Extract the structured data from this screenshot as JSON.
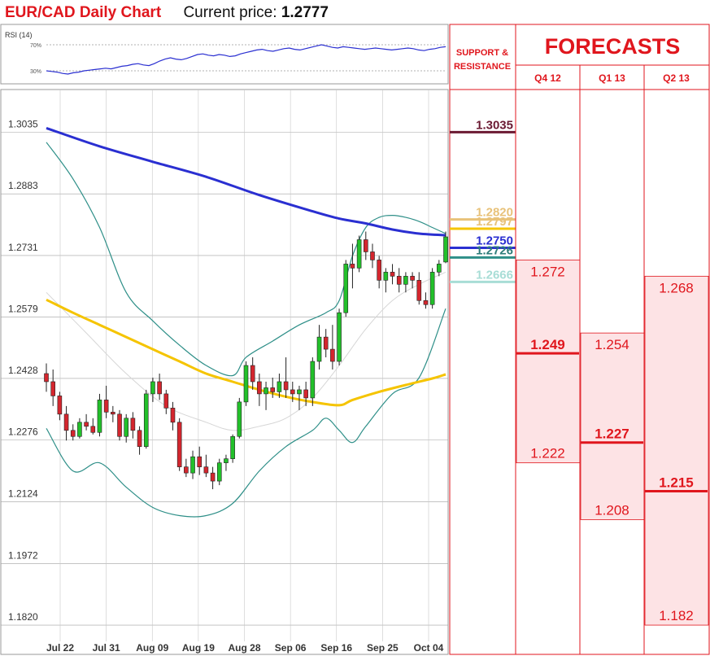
{
  "header": {
    "title": "EUR/CAD Daily Chart",
    "price_label": "Current price:",
    "price_value": "1.2777"
  },
  "colors": {
    "accent_red": "#e0161d",
    "bull_candle": "#22c02a",
    "bear_candle": "#d4262e",
    "sma_short": "#f5c400",
    "sma_long": "#2a2fd1",
    "bollinger": "#2e8f88",
    "forecast_fill": "#fde3e5"
  },
  "rsi": {
    "label": "RSI (14)",
    "levels": [
      "70%",
      "30%"
    ],
    "level_values": [
      70,
      30
    ],
    "values": [
      30,
      29,
      28,
      26,
      25,
      27,
      28,
      30,
      31,
      32,
      33,
      34,
      33,
      35,
      37,
      38,
      40,
      41,
      39,
      38,
      41,
      45,
      48,
      50,
      48,
      47,
      49,
      52,
      55,
      56,
      54,
      53,
      55,
      54,
      52,
      53,
      56,
      58,
      60,
      62,
      63,
      61,
      60,
      62,
      64,
      65,
      63,
      62,
      64,
      66,
      68,
      70,
      68,
      66,
      65,
      67,
      66,
      65,
      64,
      63,
      64,
      65,
      64,
      63,
      62,
      63,
      64,
      65,
      64,
      62,
      61,
      63,
      64,
      66,
      67
    ]
  },
  "chart_data": {
    "type": "candlestick",
    "title": "EUR/CAD Daily Chart",
    "ylim": [
      1.178,
      1.311
    ],
    "y_ticks": [
      "1.3035",
      "1.2883",
      "1.2731",
      "1.2579",
      "1.2428",
      "1.2276",
      "1.2124",
      "1.1972",
      "1.1820"
    ],
    "x_ticks": [
      "Jul 22",
      "Jul 31",
      "Aug 09",
      "Aug 19",
      "Aug 28",
      "Sep 06",
      "Sep 16",
      "Sep 25",
      "Oct 04"
    ],
    "candles": [
      [
        1.244,
        1.2465,
        1.2395,
        1.242
      ],
      [
        1.242,
        1.245,
        1.236,
        1.2385
      ],
      [
        1.2385,
        1.2395,
        1.2325,
        1.234
      ],
      [
        1.234,
        1.236,
        1.2275,
        1.23
      ],
      [
        1.23,
        1.2315,
        1.2275,
        1.2285
      ],
      [
        1.2285,
        1.233,
        1.228,
        1.232
      ],
      [
        1.232,
        1.234,
        1.23,
        1.231
      ],
      [
        1.231,
        1.233,
        1.229,
        1.2295
      ],
      [
        1.2295,
        1.239,
        1.2285,
        1.2375
      ],
      [
        1.2375,
        1.241,
        1.233,
        1.2345
      ],
      [
        1.2345,
        1.236,
        1.232,
        1.234
      ],
      [
        1.234,
        1.235,
        1.2275,
        1.2285
      ],
      [
        1.2285,
        1.234,
        1.227,
        1.233
      ],
      [
        1.233,
        1.2345,
        1.228,
        1.23
      ],
      [
        1.23,
        1.231,
        1.224,
        1.226
      ],
      [
        1.226,
        1.24,
        1.2255,
        1.239
      ],
      [
        1.239,
        1.243,
        1.237,
        1.242
      ],
      [
        1.242,
        1.244,
        1.2375,
        1.239
      ],
      [
        1.239,
        1.24,
        1.234,
        1.2355
      ],
      [
        1.2355,
        1.237,
        1.23,
        1.232
      ],
      [
        1.232,
        1.233,
        1.22,
        1.221
      ],
      [
        1.221,
        1.223,
        1.2185,
        1.2195
      ],
      [
        1.2195,
        1.225,
        1.218,
        1.2235
      ],
      [
        1.2235,
        1.226,
        1.219,
        1.221
      ],
      [
        1.221,
        1.224,
        1.2185,
        1.2195
      ],
      [
        1.2195,
        1.221,
        1.2155,
        1.2175
      ],
      [
        1.2175,
        1.223,
        1.2165,
        1.222
      ],
      [
        1.222,
        1.224,
        1.22,
        1.223
      ],
      [
        1.223,
        1.229,
        1.222,
        1.2285
      ],
      [
        1.2285,
        1.238,
        1.228,
        1.237
      ],
      [
        1.237,
        1.247,
        1.236,
        1.246
      ],
      [
        1.246,
        1.248,
        1.24,
        1.242
      ],
      [
        1.242,
        1.244,
        1.236,
        1.239
      ],
      [
        1.239,
        1.242,
        1.235,
        1.2405
      ],
      [
        1.2405,
        1.243,
        1.238,
        1.2395
      ],
      [
        1.2395,
        1.244,
        1.238,
        1.242
      ],
      [
        1.242,
        1.248,
        1.238,
        1.24
      ],
      [
        1.24,
        1.242,
        1.237,
        1.239
      ],
      [
        1.239,
        1.241,
        1.235,
        1.24
      ],
      [
        1.24,
        1.242,
        1.236,
        1.238
      ],
      [
        1.238,
        1.248,
        1.236,
        1.247
      ],
      [
        1.247,
        1.256,
        1.245,
        1.253
      ],
      [
        1.253,
        1.255,
        1.248,
        1.25
      ],
      [
        1.25,
        1.256,
        1.245,
        1.247
      ],
      [
        1.247,
        1.26,
        1.246,
        1.259
      ],
      [
        1.259,
        1.272,
        1.258,
        1.271
      ],
      [
        1.271,
        1.276,
        1.265,
        1.27
      ],
      [
        1.27,
        1.278,
        1.269,
        1.277
      ],
      [
        1.277,
        1.279,
        1.272,
        1.274
      ],
      [
        1.274,
        1.276,
        1.27,
        1.272
      ],
      [
        1.272,
        1.273,
        1.265,
        1.267
      ],
      [
        1.267,
        1.27,
        1.264,
        1.269
      ],
      [
        1.269,
        1.271,
        1.266,
        1.268
      ],
      [
        1.268,
        1.27,
        1.264,
        1.266
      ],
      [
        1.266,
        1.269,
        1.264,
        1.268
      ],
      [
        1.268,
        1.269,
        1.265,
        1.267
      ],
      [
        1.267,
        1.269,
        1.261,
        1.262
      ],
      [
        1.262,
        1.264,
        1.26,
        1.261
      ],
      [
        1.261,
        1.27,
        1.26,
        1.269
      ],
      [
        1.269,
        1.272,
        1.268,
        1.271
      ],
      [
        1.2715,
        1.279,
        1.2712,
        1.2777
      ]
    ],
    "sma_short": [
      [
        0,
        1.2622
      ],
      [
        4,
        1.259
      ],
      [
        8,
        1.256
      ],
      [
        12,
        1.253
      ],
      [
        16,
        1.25
      ],
      [
        20,
        1.247
      ],
      [
        24,
        1.244
      ],
      [
        28,
        1.242
      ],
      [
        32,
        1.24
      ],
      [
        36,
        1.2383
      ],
      [
        40,
        1.237
      ],
      [
        44,
        1.2362
      ],
      [
        46,
        1.2375
      ],
      [
        50,
        1.2395
      ],
      [
        54,
        1.2412
      ],
      [
        58,
        1.2428
      ],
      [
        60,
        1.2438
      ]
    ],
    "sma_long": [
      [
        0,
        1.3045
      ],
      [
        8,
        1.3
      ],
      [
        16,
        1.2962
      ],
      [
        24,
        1.2925
      ],
      [
        32,
        1.288
      ],
      [
        40,
        1.284
      ],
      [
        44,
        1.2822
      ],
      [
        48,
        1.281
      ],
      [
        52,
        1.2795
      ],
      [
        56,
        1.2785
      ],
      [
        60,
        1.2781
      ]
    ],
    "bb_upper": [
      [
        0,
        1.301
      ],
      [
        4,
        1.292
      ],
      [
        8,
        1.28
      ],
      [
        12,
        1.264
      ],
      [
        16,
        1.257
      ],
      [
        20,
        1.251
      ],
      [
        24,
        1.246
      ],
      [
        28,
        1.2435
      ],
      [
        30,
        1.248
      ],
      [
        34,
        1.252
      ],
      [
        38,
        1.256
      ],
      [
        42,
        1.259
      ],
      [
        44,
        1.262
      ],
      [
        46,
        1.273
      ],
      [
        48,
        1.28
      ],
      [
        50,
        1.2825
      ],
      [
        52,
        1.283
      ],
      [
        54,
        1.2825
      ],
      [
        56,
        1.2815
      ],
      [
        58,
        1.28
      ],
      [
        60,
        1.2785
      ]
    ],
    "bb_middle": [
      [
        0,
        1.264
      ],
      [
        6,
        1.254
      ],
      [
        12,
        1.244
      ],
      [
        18,
        1.236
      ],
      [
        24,
        1.232
      ],
      [
        28,
        1.23
      ],
      [
        32,
        1.231
      ],
      [
        36,
        1.233
      ],
      [
        40,
        1.238
      ],
      [
        44,
        1.246
      ],
      [
        48,
        1.255
      ],
      [
        52,
        1.262
      ],
      [
        56,
        1.266
      ],
      [
        60,
        1.269
      ]
    ],
    "bb_lower": [
      [
        0,
        1.2305
      ],
      [
        4,
        1.22
      ],
      [
        8,
        1.222
      ],
      [
        12,
        1.216
      ],
      [
        16,
        1.211
      ],
      [
        20,
        1.209
      ],
      [
        24,
        1.209
      ],
      [
        28,
        1.212
      ],
      [
        32,
        1.22
      ],
      [
        36,
        1.226
      ],
      [
        40,
        1.23
      ],
      [
        42,
        1.233
      ],
      [
        44,
        1.23
      ],
      [
        46,
        1.227
      ],
      [
        48,
        1.231
      ],
      [
        52,
        1.239
      ],
      [
        56,
        1.243
      ],
      [
        60,
        1.26
      ]
    ]
  },
  "support_resistance": {
    "title": "SUPPORT & RESISTANCE",
    "levels": [
      {
        "label": "1.3035",
        "value": 1.3035,
        "text_color": "#6b1a33",
        "line_color": "#6b1a33"
      },
      {
        "label": "1.2820",
        "value": 1.282,
        "text_color": "#e8c27a",
        "line_color": "#e8c27a"
      },
      {
        "label": "1.2797",
        "value": 1.2797,
        "text_color": "#e8c27a",
        "line_color": "#f5c400"
      },
      {
        "label": "1.2750",
        "value": 1.275,
        "text_color": "#2a2fd1",
        "line_color": "#2a2fd1"
      },
      {
        "label": "1.2726",
        "value": 1.2726,
        "text_color": "#2e7d7a",
        "line_color": "#2e8f88"
      },
      {
        "label": "1.2666",
        "value": 1.2666,
        "text_color": "#a8ddd6",
        "line_color": "#a8ddd6"
      }
    ]
  },
  "forecasts": {
    "title": "FORECASTS",
    "quarters": [
      {
        "label": "Q4 12",
        "high": "1.272",
        "mid": "1.249",
        "low": "1.222",
        "high_v": 1.272,
        "mid_v": 1.249,
        "low_v": 1.222
      },
      {
        "label": "Q1 13",
        "high": "1.254",
        "mid": "1.227",
        "low": "1.208",
        "high_v": 1.254,
        "mid_v": 1.227,
        "low_v": 1.208
      },
      {
        "label": "Q2 13",
        "high": "1.268",
        "mid": "1.215",
        "low": "1.182",
        "high_v": 1.268,
        "mid_v": 1.215,
        "low_v": 1.182
      }
    ]
  }
}
